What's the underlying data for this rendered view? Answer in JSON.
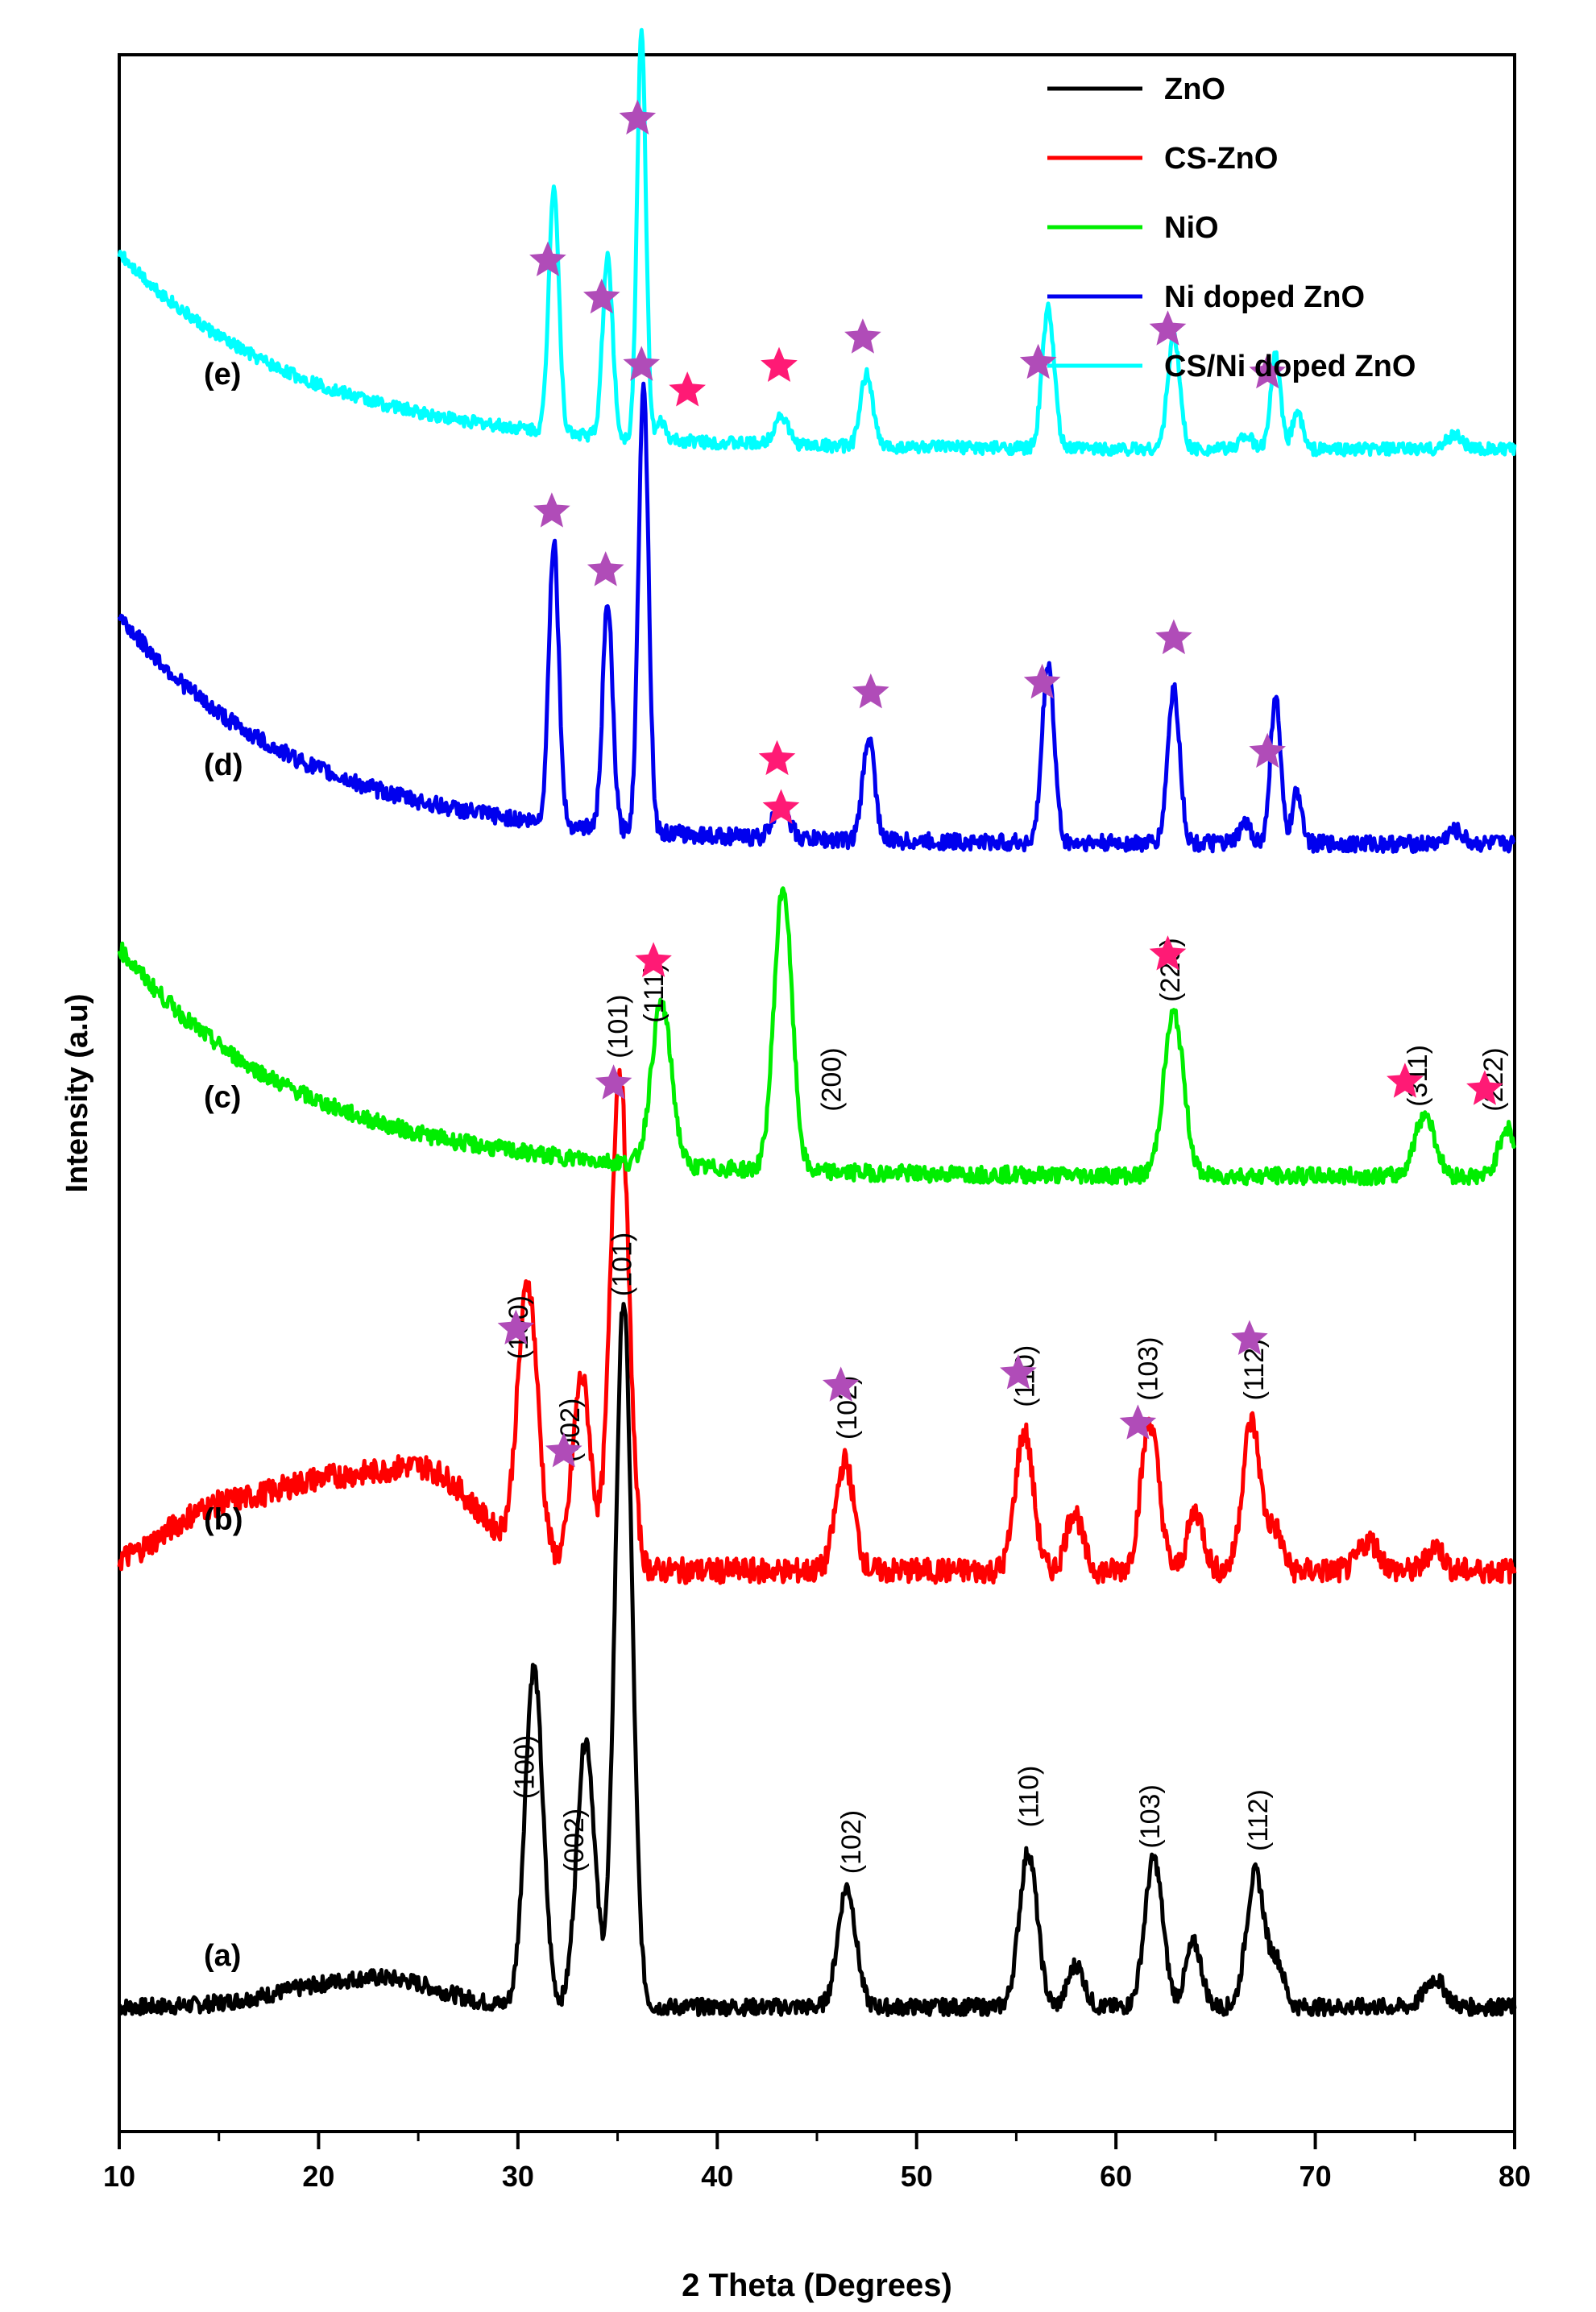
{
  "chart_data": {
    "type": "line",
    "title": "",
    "xlabel": "2 Theta (Degrees)",
    "ylabel": "Intensity (a.u)",
    "xlim": [
      10,
      80
    ],
    "xticks": [
      10,
      20,
      30,
      40,
      50,
      60,
      70,
      80
    ],
    "colors": {
      "zno": "#000000",
      "cs_zno": "#ff0000",
      "nio": "#00ee00",
      "ni_zno": "#0000ee",
      "cs_ni_zno": "#00ffff",
      "marker_zno": "#b04cb8",
      "marker_nio": "#ff1a75"
    },
    "legend": [
      {
        "label": "ZnO",
        "color": "#000000"
      },
      {
        "label": "CS-ZnO",
        "color": "#ff0000"
      },
      {
        "label": "NiO",
        "color": "#00ee00"
      },
      {
        "label": "Ni doped ZnO",
        "color": "#0000ee"
      },
      {
        "label": "CS/Ni doped ZnO",
        "color": "#00ffff"
      }
    ],
    "series": [
      {
        "name": "ZnO",
        "tag": "(a)",
        "color": "#000000",
        "baseline": 0.06,
        "amplitude": 0.34,
        "decay_amp": 0,
        "noise": 0.004,
        "humps": [
          [
            20,
            3,
            0.008
          ],
          [
            24,
            2.5,
            0.01
          ]
        ],
        "peaks": [
          [
            30.8,
            0.45,
            0.48
          ],
          [
            33.4,
            0.45,
            0.38
          ],
          [
            35.3,
            0.42,
            1.0
          ],
          [
            46.5,
            0.45,
            0.17
          ],
          [
            55.6,
            0.45,
            0.22
          ],
          [
            58,
            0.4,
            0.06
          ],
          [
            61.9,
            0.45,
            0.21
          ],
          [
            63.9,
            0.4,
            0.09
          ],
          [
            67,
            0.45,
            0.19
          ],
          [
            68.1,
            0.35,
            0.06
          ],
          [
            76,
            0.5,
            0.04
          ]
        ],
        "hkl": [
          {
            "label": "(100)",
            "x": 30.3
          },
          {
            "label": "(002)",
            "x": 32.8
          },
          {
            "label": "(101)",
            "x": 35.2
          },
          {
            "label": "(102)",
            "x": 46.7
          },
          {
            "label": "(110)",
            "x": 55.6
          },
          {
            "label": "(103)",
            "x": 61.7
          },
          {
            "label": "(112)",
            "x": 67.1
          }
        ],
        "markers": []
      },
      {
        "name": "CS-ZnO",
        "tag": "(b)",
        "color": "#ff0000",
        "baseline": 0.27,
        "amplitude": 0.24,
        "decay_amp": 0,
        "noise": 0.006,
        "humps": [
          [
            21,
            5,
            0.045
          ],
          [
            14,
            2,
            0.012
          ],
          [
            26,
            2,
            0.02
          ]
        ],
        "peaks": [
          [
            30.5,
            0.5,
            0.54
          ],
          [
            33.2,
            0.45,
            0.38
          ],
          [
            35.1,
            0.45,
            1.0
          ],
          [
            46.4,
            0.45,
            0.22
          ],
          [
            55.4,
            0.45,
            0.28
          ],
          [
            57.9,
            0.4,
            0.12
          ],
          [
            61.7,
            0.45,
            0.3
          ],
          [
            64,
            0.4,
            0.12
          ],
          [
            66.8,
            0.45,
            0.3
          ],
          [
            68,
            0.35,
            0.08
          ],
          [
            72.7,
            0.5,
            0.06
          ],
          [
            76,
            0.4,
            0.05
          ]
        ],
        "hkl": [
          {
            "label": "(100)",
            "x": 30
          },
          {
            "label": "(002)",
            "x": 32.6
          },
          {
            "label": "(101)",
            "x": 35
          },
          {
            "label": "(102)",
            "x": 46.5
          },
          {
            "label": "(110)",
            "x": 55.4
          },
          {
            "label": "(103)",
            "x": 61.6
          },
          {
            "label": "(112)",
            "x": 66.9
          }
        ],
        "markers": [
          {
            "x": 29.9,
            "kind": "zno"
          },
          {
            "x": 32.3,
            "kind": "zno"
          },
          {
            "x": 34.8,
            "kind": "zno"
          },
          {
            "x": 46.2,
            "kind": "zno"
          },
          {
            "x": 55.1,
            "kind": "zno"
          },
          {
            "x": 61.1,
            "kind": "zno"
          },
          {
            "x": 66.7,
            "kind": "zno"
          }
        ]
      },
      {
        "name": "NiO",
        "tag": "(c)",
        "color": "#00ee00",
        "baseline": 0.46,
        "amplitude": 0.13,
        "decay_amp": 0.11,
        "noise": 0.004,
        "humps": [],
        "peaks": [
          [
            37.2,
            0.5,
            0.6
          ],
          [
            43.3,
            0.45,
            1.05
          ],
          [
            62.9,
            0.5,
            0.6
          ],
          [
            75.5,
            0.5,
            0.23
          ],
          [
            79.6,
            0.4,
            0.18
          ]
        ],
        "hkl": [
          {
            "label": "(111)",
            "x": 36.8
          },
          {
            "label": "(200)",
            "x": 45.7
          },
          {
            "label": "(220)",
            "x": 62.7
          },
          {
            "label": "(311)",
            "x": 75.1
          },
          {
            "label": "(222)",
            "x": 78.9
          }
        ],
        "markers": [
          {
            "x": 36.8,
            "kind": "nio"
          },
          {
            "x": 43.2,
            "kind": "nio"
          },
          {
            "x": 62.6,
            "kind": "nio"
          },
          {
            "x": 74.5,
            "kind": "nio"
          },
          {
            "x": 78.5,
            "kind": "nio"
          }
        ]
      },
      {
        "name": "Ni doped ZnO",
        "tag": "(d)",
        "color": "#0000ee",
        "baseline": 0.62,
        "amplitude": 0.155,
        "decay_amp": 0.11,
        "noise": 0.004,
        "humps": [],
        "peaks": [
          [
            31.8,
            0.25,
            0.88
          ],
          [
            34.5,
            0.25,
            0.7
          ],
          [
            36.3,
            0.25,
            1.4
          ],
          [
            43.2,
            0.4,
            0.1
          ],
          [
            47.6,
            0.3,
            0.32
          ],
          [
            56.6,
            0.3,
            0.56
          ],
          [
            62.9,
            0.3,
            0.48
          ],
          [
            66.5,
            0.3,
            0.06
          ],
          [
            68,
            0.25,
            0.46
          ],
          [
            69.1,
            0.25,
            0.16
          ],
          [
            77,
            0.4,
            0.04
          ]
        ],
        "hkl": [],
        "markers": [
          {
            "x": 31.7,
            "kind": "zno"
          },
          {
            "x": 34.4,
            "kind": "zno"
          },
          {
            "x": 36.2,
            "kind": "zno"
          },
          {
            "x": 43.0,
            "kind": "nio"
          },
          {
            "x": 47.7,
            "kind": "zno"
          },
          {
            "x": 56.3,
            "kind": "zno"
          },
          {
            "x": 62.9,
            "kind": "zno"
          },
          {
            "x": 67.6,
            "kind": "zno"
          }
        ]
      },
      {
        "name": "CS/Ni doped ZnO",
        "tag": "(e)",
        "color": "#00ffff",
        "baseline": 0.81,
        "amplitude": 0.14,
        "decay_amp": 0.095,
        "noise": 0.003,
        "humps": [],
        "peaks": [
          [
            31.8,
            0.25,
            0.85
          ],
          [
            34.5,
            0.25,
            0.62
          ],
          [
            36.2,
            0.22,
            1.4
          ],
          [
            37.2,
            0.2,
            0.06
          ],
          [
            43.2,
            0.35,
            0.1
          ],
          [
            47.5,
            0.3,
            0.25
          ],
          [
            56.6,
            0.3,
            0.48
          ],
          [
            62.9,
            0.3,
            0.39
          ],
          [
            66.5,
            0.3,
            0.05
          ],
          [
            68,
            0.25,
            0.32
          ],
          [
            69.1,
            0.25,
            0.13
          ],
          [
            77,
            0.4,
            0.05
          ]
        ],
        "hkl": [],
        "markers": [
          {
            "x": 31.5,
            "kind": "zno"
          },
          {
            "x": 34.2,
            "kind": "zno"
          },
          {
            "x": 36.0,
            "kind": "zno"
          },
          {
            "x": 38.5,
            "kind": "nio"
          },
          {
            "x": 43.1,
            "kind": "nio"
          },
          {
            "x": 47.3,
            "kind": "zno"
          },
          {
            "x": 56.1,
            "kind": "zno"
          },
          {
            "x": 62.6,
            "kind": "zno"
          },
          {
            "x": 67.6,
            "kind": "zno"
          }
        ]
      }
    ]
  }
}
